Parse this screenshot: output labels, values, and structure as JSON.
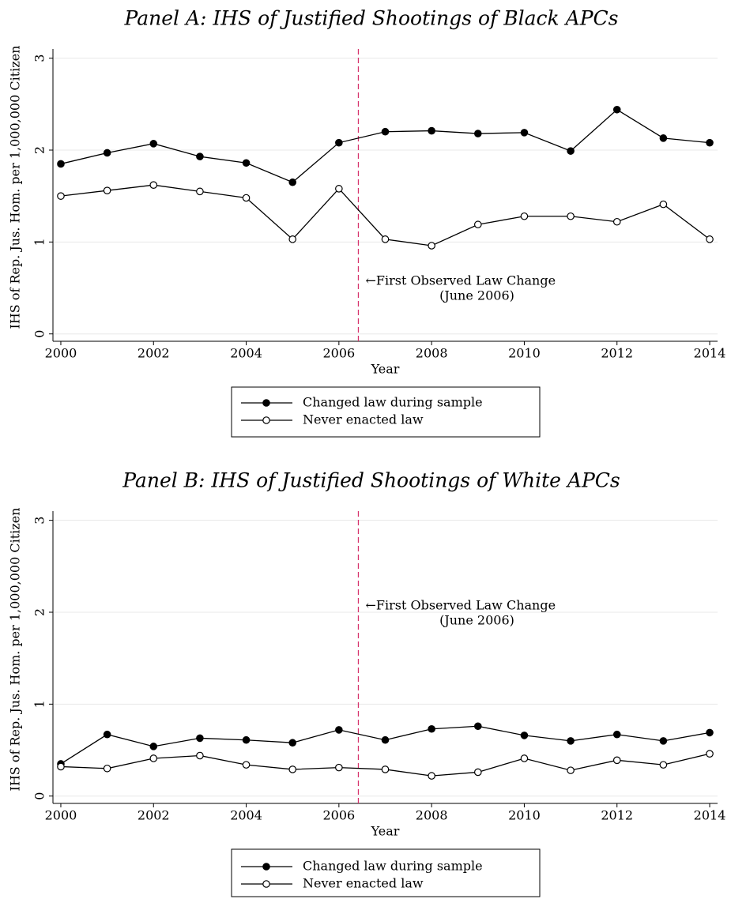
{
  "charts": [
    {
      "chart_data": {
        "type": "line",
        "title": "Panel A: IHS of Justified Shootings of Black APCs",
        "xlabel": "Year",
        "ylabel": "IHS of Rep. Jus. Hom. per 1,000,000 Citizen",
        "x": [
          2000,
          2001,
          2002,
          2003,
          2004,
          2005,
          2006,
          2007,
          2008,
          2009,
          2010,
          2011,
          2012,
          2013,
          2014
        ],
        "series": [
          {
            "name": "Changed law during sample",
            "color": "#000000",
            "marker": "filled",
            "values": [
              1.85,
              1.97,
              2.07,
              1.93,
              1.86,
              1.65,
              2.08,
              2.2,
              2.21,
              2.18,
              2.19,
              1.99,
              2.44,
              2.13,
              2.08
            ]
          },
          {
            "name": "Never enacted law",
            "color": "#000000",
            "marker": "hollow",
            "values": [
              1.5,
              1.56,
              1.62,
              1.55,
              1.48,
              1.03,
              1.58,
              1.03,
              0.96,
              1.19,
              1.28,
              1.28,
              1.22,
              1.41,
              1.03
            ]
          }
        ],
        "xlim": [
          1999.83,
          2014.17
        ],
        "xticks": [
          2000,
          2002,
          2004,
          2006,
          2008,
          2010,
          2012,
          2014
        ],
        "ylim": [
          -0.08,
          3.1
        ],
        "yticks": [
          0,
          1,
          2,
          3
        ],
        "grid": true,
        "vline": 2006.42,
        "vline_color": "#d6336c",
        "annotation": [
          "←First Observed Law Change",
          "(June 2006)"
        ]
      }
    },
    {
      "chart_data": {
        "type": "line",
        "title": "Panel B: IHS of Justified Shootings of White APCs",
        "xlabel": "Year",
        "ylabel": "IHS of Rep. Jus. Hom. per 1,000,000 Citizen",
        "x": [
          2000,
          2001,
          2002,
          2003,
          2004,
          2005,
          2006,
          2007,
          2008,
          2009,
          2010,
          2011,
          2012,
          2013,
          2014
        ],
        "series": [
          {
            "name": "Changed law during sample",
            "color": "#000000",
            "marker": "filled",
            "values": [
              0.35,
              0.67,
              0.54,
              0.63,
              0.61,
              0.58,
              0.72,
              0.61,
              0.73,
              0.76,
              0.66,
              0.6,
              0.67,
              0.6,
              0.69
            ]
          },
          {
            "name": "Never enacted law",
            "color": "#000000",
            "marker": "hollow",
            "values": [
              0.32,
              0.3,
              0.41,
              0.44,
              0.34,
              0.29,
              0.31,
              0.29,
              0.22,
              0.26,
              0.41,
              0.28,
              0.39,
              0.34,
              0.46
            ]
          }
        ],
        "xlim": [
          1999.83,
          2014.17
        ],
        "xticks": [
          2000,
          2002,
          2004,
          2006,
          2008,
          2010,
          2012,
          2014
        ],
        "ylim": [
          -0.08,
          3.1
        ],
        "yticks": [
          0,
          1,
          2,
          3
        ],
        "grid": true,
        "vline": 2006.42,
        "vline_color": "#d6336c",
        "annotation": [
          "←First Observed Law Change",
          "(June 2006)"
        ]
      }
    }
  ]
}
